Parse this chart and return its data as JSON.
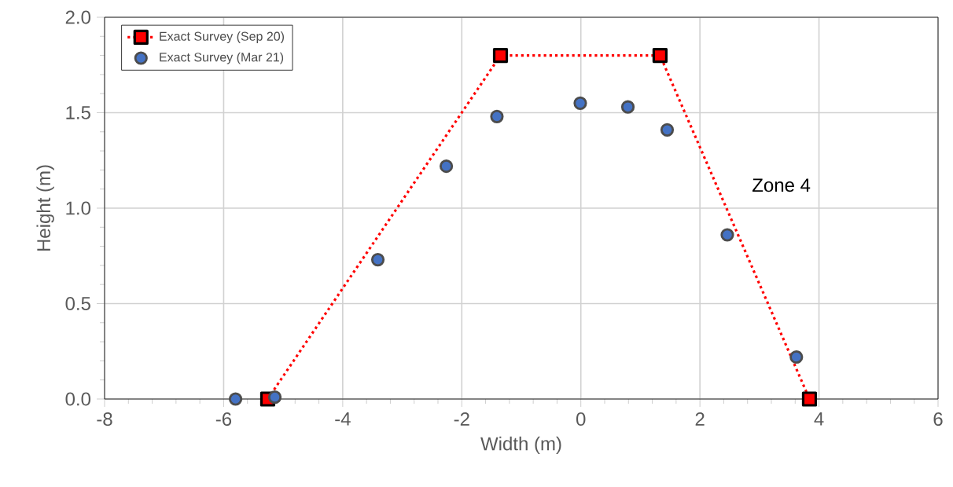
{
  "chart_data": {
    "type": "line",
    "xlabel": "Width (m)",
    "ylabel": "Height (m)",
    "xlim": [
      -8,
      6
    ],
    "xticks": [
      -8,
      -6,
      -4,
      -2,
      0,
      2,
      4,
      6
    ],
    "ylim": [
      0,
      2
    ],
    "yticks": [
      {
        "value": 0,
        "label": "0.0"
      },
      {
        "value": 0.5,
        "label": "0.5"
      },
      {
        "value": 1,
        "label": "1.0"
      },
      {
        "value": 1.5,
        "label": "1.5"
      },
      {
        "value": 2,
        "label": "2.0"
      }
    ],
    "grid": true,
    "legend": "top left",
    "annotations": [
      "Zone 4"
    ],
    "series": [
      {
        "name": "Exact Survey (Sep 20)",
        "color": "#ff0000",
        "marker": "square",
        "line_style": "dotted",
        "x": [
          -5.26,
          -1.35,
          1.33,
          3.84
        ],
        "values": [
          0,
          1.8,
          1.8,
          0
        ]
      },
      {
        "name": "Exact Survey (Mar 21)",
        "type": "scatter",
        "color": "#4472c4",
        "marker": "circle",
        "x": [
          -5.8,
          -5.14,
          -3.41,
          -2.26,
          -1.41,
          -0.01,
          0.79,
          1.45,
          2.46,
          3.62
        ],
        "values": [
          0,
          0.01,
          0.73,
          1.22,
          1.48,
          1.55,
          1.53,
          1.41,
          0.86,
          0.22
        ]
      }
    ]
  }
}
